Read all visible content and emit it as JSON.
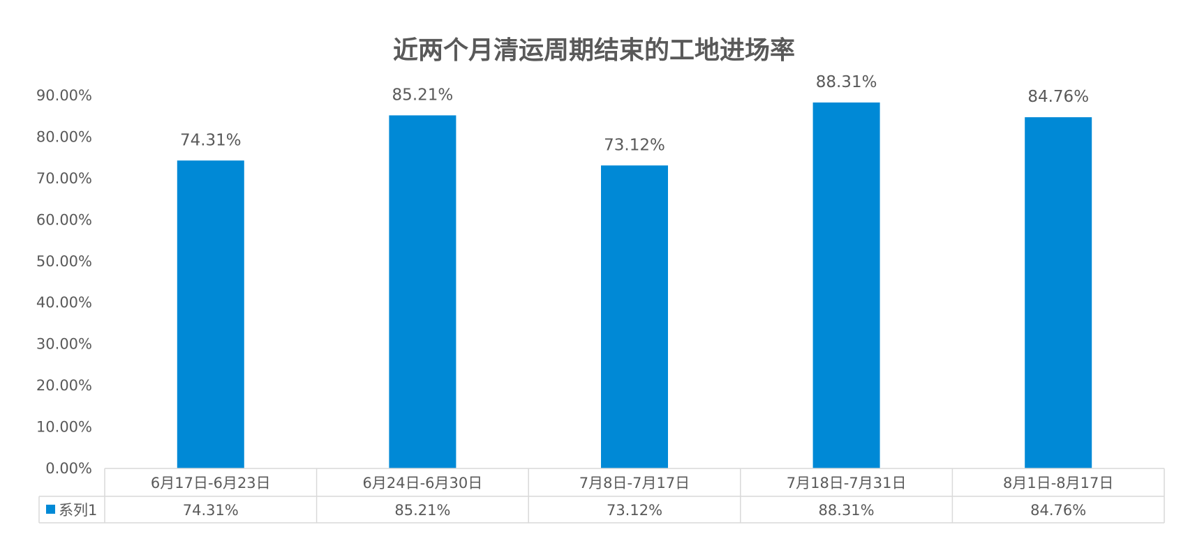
{
  "chart_data": {
    "type": "bar",
    "title": "近两个月清运周期结束的工地进场率",
    "categories": [
      "6月17日-6月23日",
      "6月24日-6月30日",
      "7月8日-7月17日",
      "7月18日-7月31日",
      "8月1日-8月17日"
    ],
    "series": [
      {
        "name": "系列1",
        "values": [
          74.31,
          85.21,
          73.12,
          88.31,
          84.76
        ],
        "labels": [
          "74.31%",
          "85.21%",
          "73.12%",
          "88.31%",
          "84.76%"
        ],
        "color": "#0089D6"
      }
    ],
    "ylim": [
      0,
      90
    ],
    "yticks": [
      "0.00%",
      "10.00%",
      "20.00%",
      "30.00%",
      "40.00%",
      "50.00%",
      "60.00%",
      "70.00%",
      "80.00%",
      "90.00%"
    ],
    "y_tick_step": 10,
    "grid": false,
    "legend": "data-table",
    "data_table": true,
    "colors": {
      "bar": "#0089D6",
      "text": "#595959",
      "table_border": "#d9d9d9"
    }
  }
}
